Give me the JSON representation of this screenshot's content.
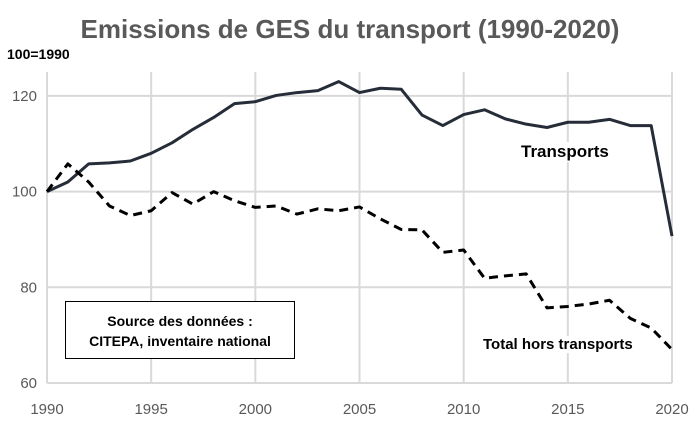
{
  "chart_data": {
    "type": "line",
    "title": "Emissions de GES du transport (1990-2020)",
    "ylabel": "100=1990",
    "xlabel": "",
    "xlim": [
      1990,
      2020
    ],
    "ylim": [
      60,
      125
    ],
    "xticks": [
      1990,
      1995,
      2000,
      2005,
      2010,
      2015,
      2020
    ],
    "yticks": [
      60,
      80,
      100,
      120
    ],
    "grid": true,
    "x": [
      1990,
      1991,
      1992,
      1993,
      1994,
      1995,
      1996,
      1997,
      1998,
      1999,
      2000,
      2001,
      2002,
      2003,
      2004,
      2005,
      2006,
      2007,
      2008,
      2009,
      2010,
      2011,
      2012,
      2013,
      2014,
      2015,
      2016,
      2017,
      2018,
      2019,
      2020
    ],
    "series": [
      {
        "name": "Transports",
        "style": "solid",
        "color": "#262d38",
        "values": [
          100,
          102,
          105.8,
          106,
          106.4,
          108,
          110.2,
          113,
          115.5,
          118.4,
          118.8,
          120.1,
          120.7,
          121.1,
          123,
          120.7,
          121.6,
          121.4,
          116,
          113.8,
          116.1,
          117.1,
          115.2,
          114.1,
          113.4,
          114.5,
          114.5,
          115.1,
          113.8,
          113.8,
          90.7
        ]
      },
      {
        "name": "Total hors transports",
        "style": "dashed",
        "color": "#000000",
        "values": [
          100,
          105.8,
          102,
          97,
          95,
          96,
          99.8,
          97.4,
          100,
          98.1,
          96.7,
          97,
          95.3,
          96.4,
          96,
          96.8,
          94.3,
          92.1,
          92,
          87.3,
          87.8,
          81.9,
          82.4,
          82.8,
          75.7,
          76,
          76.5,
          77.3,
          73.5,
          71.5,
          67
        ]
      }
    ],
    "annotation": {
      "line1": "Source des données :",
      "line2": "CITEPA, inventaire national"
    }
  }
}
